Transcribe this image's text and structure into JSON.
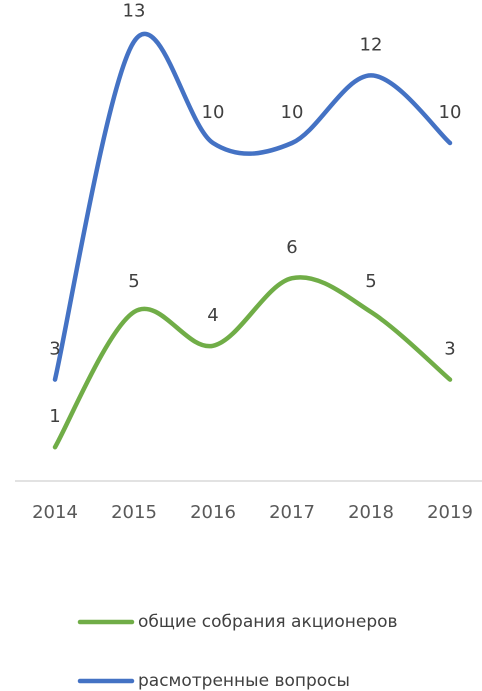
{
  "chart_data": {
    "type": "line",
    "categories": [
      "2014",
      "2015",
      "2016",
      "2017",
      "2018",
      "2019"
    ],
    "series": [
      {
        "name": "общие собрания акционеров",
        "color": "#70ad47",
        "values": [
          1,
          5,
          4,
          6,
          5,
          3
        ]
      },
      {
        "name": "расмотренные вопросы",
        "color": "#4472c4",
        "values": [
          3,
          13,
          10,
          10,
          12,
          10
        ]
      }
    ],
    "ylim": [
      0,
      14
    ],
    "smooth": true,
    "data_labels": true,
    "legend": "bottom"
  }
}
